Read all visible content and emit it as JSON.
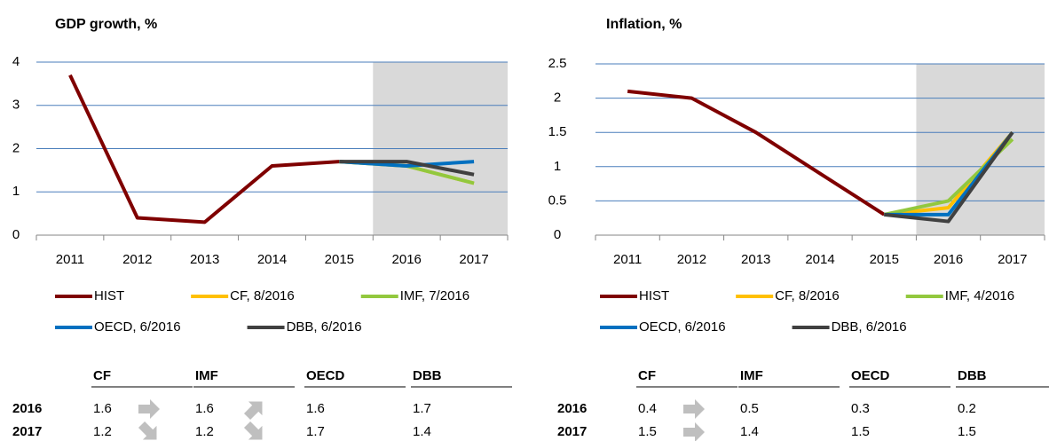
{
  "chart_data": [
    {
      "type": "line",
      "title": "GDP growth, %",
      "categories": [
        "2011",
        "2012",
        "2013",
        "2014",
        "2015",
        "2016",
        "2017"
      ],
      "ylim": [
        0,
        4
      ],
      "yticks": [
        0,
        1,
        2,
        3,
        4
      ],
      "grid": true,
      "shade": {
        "from": "2016",
        "to": "2017",
        "color": "#d9d9d9"
      },
      "series": [
        {
          "name": "HIST",
          "color": "#7f0000",
          "values": [
            3.7,
            0.4,
            0.3,
            1.6,
            1.7,
            null,
            null
          ]
        },
        {
          "name": "CF, 8/2016",
          "color": "#ffc000",
          "values": [
            null,
            null,
            null,
            null,
            1.7,
            1.6,
            1.2
          ]
        },
        {
          "name": "IMF, 7/2016",
          "color": "#92c83e",
          "values": [
            null,
            null,
            null,
            null,
            1.7,
            1.6,
            1.2
          ]
        },
        {
          "name": "OECD, 6/2016",
          "color": "#0070c0",
          "values": [
            null,
            null,
            null,
            null,
            1.7,
            1.6,
            1.7
          ]
        },
        {
          "name": "DBB, 6/2016",
          "color": "#404040",
          "values": [
            null,
            null,
            null,
            null,
            1.7,
            1.7,
            1.4
          ]
        }
      ]
    },
    {
      "type": "line",
      "title": "Inflation, %",
      "categories": [
        "2011",
        "2012",
        "2013",
        "2014",
        "2015",
        "2016",
        "2017"
      ],
      "ylim": [
        0,
        2.5
      ],
      "yticks": [
        0,
        0.5,
        1,
        1.5,
        2,
        2.5
      ],
      "grid": true,
      "shade": {
        "from": "2016",
        "to": "2017",
        "color": "#d9d9d9"
      },
      "series": [
        {
          "name": "HIST",
          "color": "#7f0000",
          "values": [
            2.1,
            2.0,
            1.5,
            0.9,
            0.3,
            null,
            null
          ]
        },
        {
          "name": "CF, 8/2016",
          "color": "#ffc000",
          "values": [
            null,
            null,
            null,
            null,
            0.3,
            0.4,
            1.5
          ]
        },
        {
          "name": "IMF, 4/2016",
          "color": "#92c83e",
          "values": [
            null,
            null,
            null,
            null,
            0.3,
            0.5,
            1.4
          ]
        },
        {
          "name": "OECD, 6/2016",
          "color": "#0070c0",
          "values": [
            null,
            null,
            null,
            null,
            0.3,
            0.3,
            1.5
          ]
        },
        {
          "name": "DBB, 6/2016",
          "color": "#404040",
          "values": [
            null,
            null,
            null,
            null,
            0.3,
            0.2,
            1.5
          ]
        }
      ]
    }
  ],
  "tables": [
    {
      "columns": [
        "CF",
        "IMF",
        "OECD",
        "DBB"
      ],
      "rows": [
        {
          "label": "2016",
          "values": [
            1.6,
            1.6,
            1.6,
            1.7
          ]
        },
        {
          "label": "2017",
          "values": [
            1.2,
            1.2,
            1.7,
            1.4
          ]
        }
      ]
    },
    {
      "columns": [
        "CF",
        "IMF",
        "OECD",
        "DBB"
      ],
      "rows": [
        {
          "label": "2016",
          "values": [
            0.4,
            0.5,
            0.3,
            0.2
          ]
        },
        {
          "label": "2017",
          "values": [
            1.5,
            1.4,
            1.5,
            1.5
          ]
        }
      ]
    }
  ]
}
